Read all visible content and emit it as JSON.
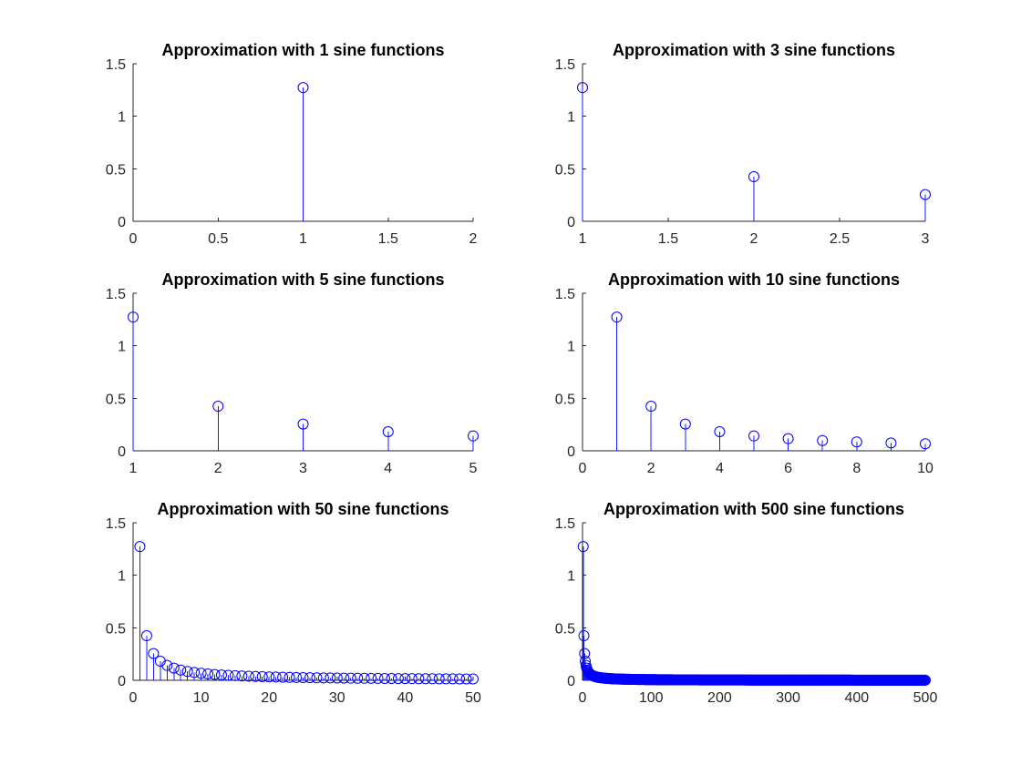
{
  "chart_data": [
    {
      "type": "stem",
      "title": "Approximation with 1 sine functions",
      "xlim": [
        0,
        2
      ],
      "ylim": [
        0,
        1.5
      ],
      "xticks": [
        0,
        0.5,
        1,
        1.5,
        2
      ],
      "xtick_labels": [
        "0",
        "0.5",
        "1",
        "1.5",
        "2"
      ],
      "yticks": [
        0,
        0.5,
        1,
        1.5
      ],
      "ytick_labels": [
        "0",
        "0.5",
        "1",
        "1.5"
      ],
      "grid": false,
      "x": [
        1
      ],
      "y": [
        1.2732
      ]
    },
    {
      "type": "stem",
      "title": "Approximation with 3 sine functions",
      "xlim": [
        1,
        3
      ],
      "ylim": [
        0,
        1.5
      ],
      "xticks": [
        1,
        1.5,
        2,
        2.5,
        3
      ],
      "xtick_labels": [
        "1",
        "1.5",
        "2",
        "2.5",
        "3"
      ],
      "yticks": [
        0,
        0.5,
        1,
        1.5
      ],
      "ytick_labels": [
        "0",
        "0.5",
        "1",
        "1.5"
      ],
      "grid": false,
      "x": [
        1,
        2,
        3
      ],
      "y": [
        1.2732,
        0.4244,
        0.2546
      ]
    },
    {
      "type": "stem",
      "title": "Approximation with 5 sine functions",
      "xlim": [
        1,
        5
      ],
      "ylim": [
        0,
        1.5
      ],
      "xticks": [
        1,
        2,
        3,
        4,
        5
      ],
      "xtick_labels": [
        "1",
        "2",
        "3",
        "4",
        "5"
      ],
      "yticks": [
        0,
        0.5,
        1,
        1.5
      ],
      "ytick_labels": [
        "0",
        "0.5",
        "1",
        "1.5"
      ],
      "grid": false,
      "x": [
        1,
        2,
        3,
        4,
        5
      ],
      "y": [
        1.2732,
        0.4244,
        0.2546,
        0.1819,
        0.1415
      ]
    },
    {
      "type": "stem",
      "title": "Approximation with 10 sine functions",
      "xlim": [
        0,
        10
      ],
      "ylim": [
        0,
        1.5
      ],
      "xticks": [
        0,
        2,
        4,
        6,
        8,
        10
      ],
      "xtick_labels": [
        "0",
        "2",
        "4",
        "6",
        "8",
        "10"
      ],
      "yticks": [
        0,
        0.5,
        1,
        1.5
      ],
      "ytick_labels": [
        "0",
        "0.5",
        "1",
        "1.5"
      ],
      "grid": false,
      "x": [
        1,
        2,
        3,
        4,
        5,
        6,
        7,
        8,
        9,
        10
      ],
      "y": [
        1.2732,
        0.4244,
        0.2546,
        0.1819,
        0.1415,
        0.1157,
        0.0979,
        0.0849,
        0.0749,
        0.067
      ]
    },
    {
      "type": "stem",
      "title": "Approximation with 50 sine functions",
      "xlim": [
        0,
        50
      ],
      "ylim": [
        0,
        1.5
      ],
      "xticks": [
        0,
        10,
        20,
        30,
        40,
        50
      ],
      "xtick_labels": [
        "0",
        "10",
        "20",
        "30",
        "40",
        "50"
      ],
      "yticks": [
        0,
        0.5,
        1,
        1.5
      ],
      "ytick_labels": [
        "0",
        "0.5",
        "1",
        "1.5"
      ],
      "grid": false,
      "x_range": [
        1,
        50
      ],
      "y_rule": "4/(pi*(2*n-1)) for n = 1..50"
    },
    {
      "type": "stem",
      "title": "Approximation with 500 sine functions",
      "xlim": [
        0,
        500
      ],
      "ylim": [
        0,
        1.5
      ],
      "xticks": [
        0,
        100,
        200,
        300,
        400,
        500
      ],
      "xtick_labels": [
        "0",
        "100",
        "200",
        "300",
        "400",
        "500"
      ],
      "yticks": [
        0,
        0.5,
        1,
        1.5
      ],
      "ytick_labels": [
        "0",
        "0.5",
        "1",
        "1.5"
      ],
      "grid": false,
      "x_range": [
        1,
        500
      ],
      "y_rule": "4/(pi*(2*n-1)) for n = 1..500"
    }
  ],
  "style": {
    "stem_color": "#0000ff",
    "stem_line_color": "#1a1aff",
    "axis_color": "#262626",
    "title_color": "#000000"
  }
}
